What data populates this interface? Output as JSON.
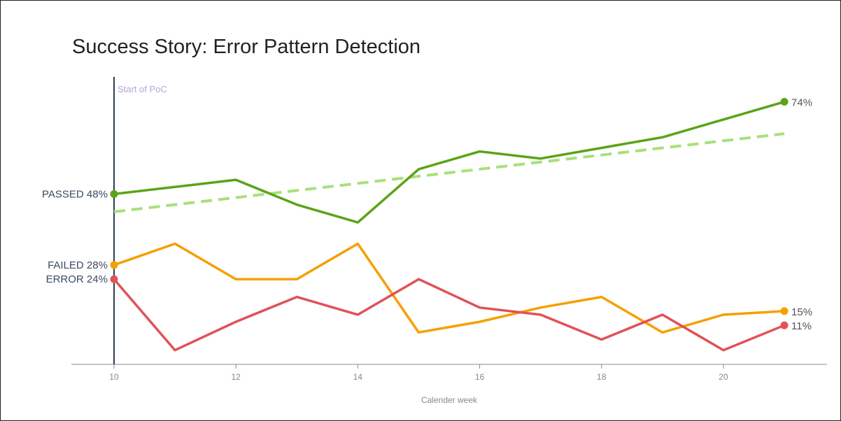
{
  "title": "Success Story: Error Pattern Detection",
  "chart_data": {
    "type": "line",
    "title": "Success Story: Error Pattern Detection",
    "xlabel": "Calender week",
    "ylabel": "",
    "x": [
      10,
      11,
      12,
      13,
      14,
      15,
      16,
      17,
      18,
      19,
      20,
      21
    ],
    "xticks": [
      10,
      12,
      14,
      16,
      18,
      20
    ],
    "xlim": [
      9.3,
      21.7
    ],
    "ylim": [
      0,
      81
    ],
    "grid": false,
    "legend": "none",
    "series": [
      {
        "name": "PASSED",
        "color": "#5ba318",
        "values": [
          48,
          50,
          52,
          45,
          40,
          55,
          60,
          58,
          61,
          64,
          69,
          74
        ],
        "start_label": "PASSED 48%",
        "end_label": "74%"
      },
      {
        "name": "FAILED",
        "color": "#f5a000",
        "values": [
          28,
          34,
          24,
          24,
          34,
          9,
          12,
          16,
          19,
          9,
          14,
          15
        ],
        "start_label": "FAILED 28%",
        "end_label": "15%"
      },
      {
        "name": "ERROR",
        "color": "#e05257",
        "values": [
          24,
          4,
          12,
          19,
          14,
          24,
          16,
          14,
          7,
          14,
          4,
          11
        ],
        "start_label": "ERROR 24%",
        "end_label": "11%"
      }
    ],
    "trend": {
      "color": "#a8e07a",
      "x": [
        10,
        21
      ],
      "values": [
        43,
        65
      ]
    },
    "annotation": {
      "x": 10,
      "text": "Start of PoC",
      "color": "#b9a3db"
    }
  }
}
